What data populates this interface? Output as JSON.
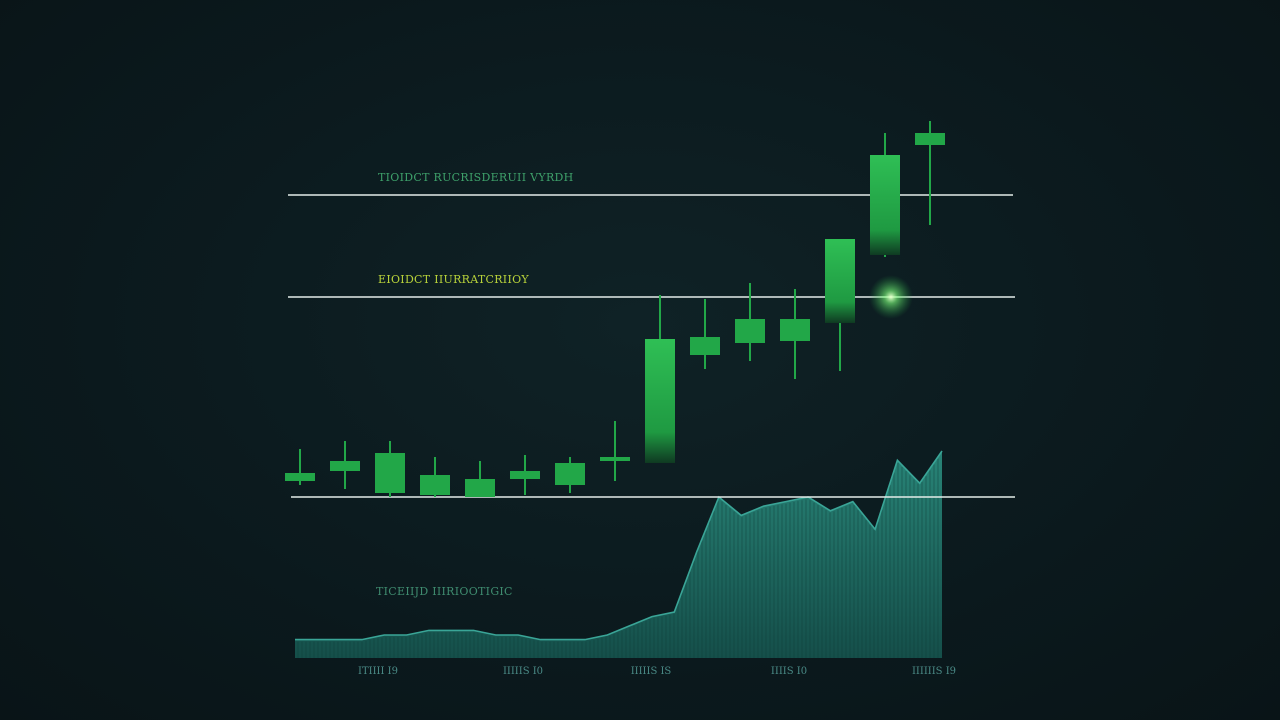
{
  "chart_data": {
    "type": "candlestick",
    "level_labels": [
      {
        "text": "TIOIDCT RUCRISDERUII VYRDH",
        "price": 151
      },
      {
        "text": "EIOIDCT IIURRATCRIIOY",
        "price": 100
      }
    ],
    "support_level": {
      "price": 0
    },
    "volume_label": "TICEIIJD IIIRIOOTIGIC",
    "x_ticks": [
      "ITIIII I9",
      "IIIIIS I0",
      "IIIIIS IS",
      "IIIIS I0",
      "IIIIIIS I9"
    ],
    "candles": [
      {
        "open": 8,
        "close": 12,
        "high": 24,
        "low": 6
      },
      {
        "open": 13,
        "close": 18,
        "high": 28,
        "low": 4
      },
      {
        "open": 22,
        "close": 2,
        "high": 28,
        "low": 0
      },
      {
        "open": 1,
        "close": 11,
        "high": 20,
        "low": 0
      },
      {
        "open": 0,
        "close": 9,
        "high": 18,
        "low": 0
      },
      {
        "open": 9,
        "close": 13,
        "high": 21,
        "low": 1
      },
      {
        "open": 6,
        "close": 17,
        "high": 20,
        "low": 2
      },
      {
        "open": 18,
        "close": 20,
        "high": 38,
        "low": 8
      },
      {
        "open": 17,
        "close": 79,
        "high": 101,
        "low": 17
      },
      {
        "open": 71,
        "close": 80,
        "high": 99,
        "low": 64
      },
      {
        "open": 77,
        "close": 89,
        "high": 107,
        "low": 68
      },
      {
        "open": 78,
        "close": 89,
        "high": 104,
        "low": 59
      },
      {
        "open": 87,
        "close": 129,
        "high": 129,
        "low": 63
      },
      {
        "open": 121,
        "close": 171,
        "high": 182,
        "low": 120
      },
      {
        "open": 176,
        "close": 182,
        "high": 188,
        "low": 136
      }
    ],
    "volume": [
      4,
      4,
      4,
      4,
      5,
      5,
      6,
      6,
      6,
      5,
      5,
      4,
      4,
      4,
      5,
      7,
      9,
      10,
      23,
      35,
      31,
      33,
      34,
      35,
      32,
      34,
      28,
      43,
      38,
      45
    ],
    "colors": {
      "candle": "#22a748",
      "candle_highlight": "#3ccf62",
      "level_line": "#e4ece9",
      "level_label_top": "#3ea06a",
      "level_label_mid": "#b8d23a",
      "volume_fill": "#1f6b63",
      "volume_line": "#3aa597",
      "volume_label": "#3f8b6f",
      "tick": "#4a8a86"
    }
  }
}
